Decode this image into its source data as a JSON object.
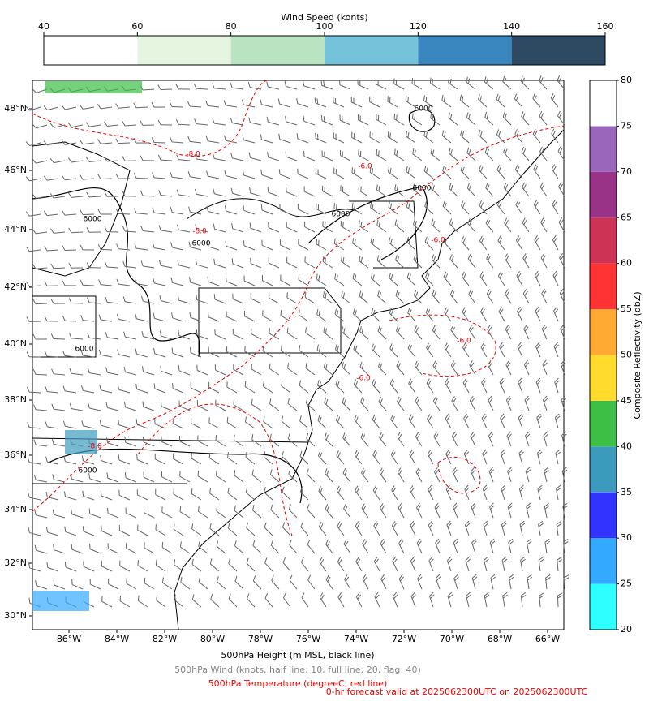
{
  "top_colorbar": {
    "title": "Wind Speed (konts)",
    "ticks": [
      40,
      60,
      80,
      100,
      120,
      140,
      160
    ],
    "colors": [
      "#ffffff",
      "#e5f5e0",
      "#b9e3c1",
      "#74c3db",
      "#3a87c0",
      "#2e4a63"
    ]
  },
  "right_colorbar": {
    "label": "Composite Reflectivity (dbZ)",
    "ticks": [
      20,
      25,
      30,
      35,
      40,
      45,
      50,
      55,
      60,
      65,
      70,
      75,
      80
    ],
    "colors": [
      "#2effff",
      "#33aaff",
      "#3333ff",
      "#3c9bbd",
      "#3dbe45",
      "#ffdb2d",
      "#ffaa33",
      "#ff3333",
      "#cc3355",
      "#993388",
      "#9966bb",
      "#ffffff"
    ]
  },
  "map": {
    "lon_labels": [
      "86°W",
      "84°W",
      "82°W",
      "80°W",
      "78°W",
      "76°W",
      "74°W",
      "72°W",
      "70°W",
      "68°W",
      "66°W"
    ],
    "lat_labels": [
      "48°N",
      "46°N",
      "44°N",
      "42°N",
      "40°N",
      "38°N",
      "36°N",
      "34°N",
      "32°N",
      "30°N"
    ],
    "height_labels": [
      "6000",
      "6000",
      "6000",
      "6000",
      "6000",
      "6000",
      "6000"
    ],
    "temp_labels": [
      "-8.0",
      "-6.0",
      "-8.0",
      "-6.0",
      "-6.0",
      "-6.0",
      "-8.0"
    ]
  },
  "captions": {
    "height": "500hPa Height (m MSL, black line)",
    "wind": "500hPa Wind (knots, half line: 10, full line: 20, flag: 40)",
    "temperature": "500hPa Temperature (degreeC, red line)",
    "valid": "0-hr forecast valid at 2025062300UTC on 2025062300UTC"
  }
}
